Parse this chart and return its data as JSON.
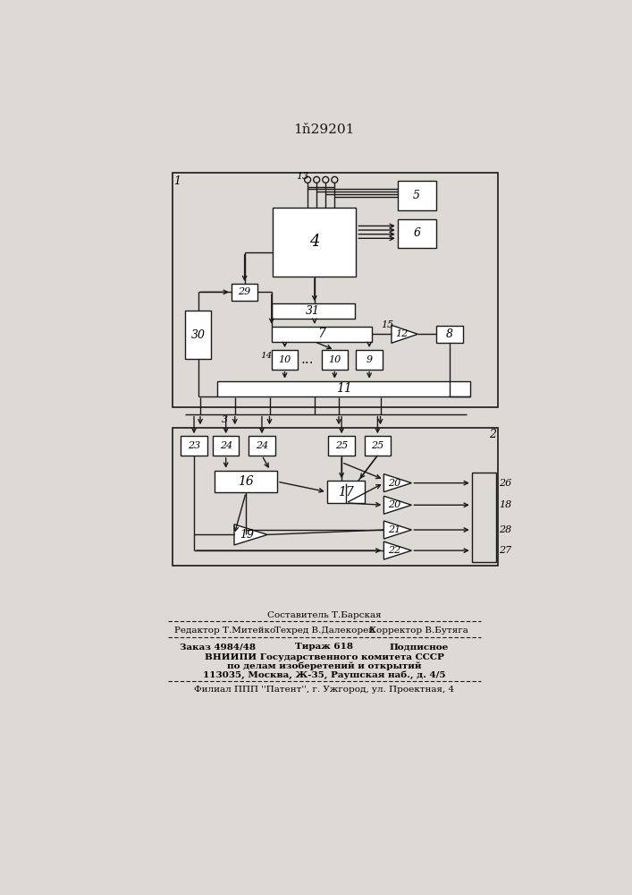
{
  "title": "1ň29201",
  "bg_color": "#e8e5e0",
  "line_color": "#1a1a1a",
  "lw": 1.0,
  "footer": {
    "line1": "Составитель Т.Барская",
    "line2a": "Редактор Т.Митейко",
    "line2b": "Техред В.Далекорей",
    "line2c": "Корректор В.Бутяга",
    "line3a": "Заказ 4984/48",
    "line3b": "Тираж 618",
    "line3c": "Подписное",
    "line4": "ВНИИПИ Государственного комитета СССР",
    "line5": "по делам изоберетений и открытий",
    "line6": "113035, Москва, Ж-35, Раушская наб., д. 4/5",
    "line7": "Филиал ППП ''Патент'', г. Ужгород, ул. Проектная, 4"
  }
}
